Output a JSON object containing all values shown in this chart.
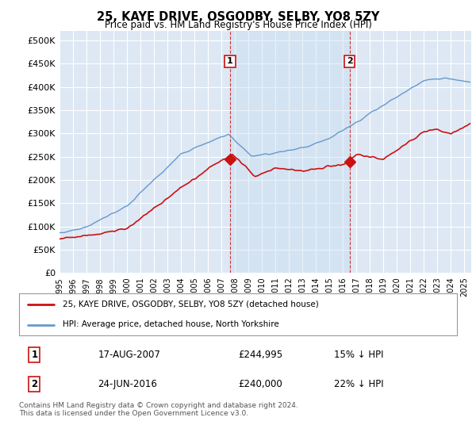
{
  "title": "25, KAYE DRIVE, OSGODBY, SELBY, YO8 5ZY",
  "subtitle": "Price paid vs. HM Land Registry's House Price Index (HPI)",
  "ylabel_ticks": [
    "£0",
    "£50K",
    "£100K",
    "£150K",
    "£200K",
    "£250K",
    "£300K",
    "£350K",
    "£400K",
    "£450K",
    "£500K"
  ],
  "ytick_values": [
    0,
    50000,
    100000,
    150000,
    200000,
    250000,
    300000,
    350000,
    400000,
    450000,
    500000
  ],
  "ylim": [
    0,
    520000
  ],
  "xlim_start": 1995.0,
  "xlim_end": 2025.5,
  "bg_color": "#dde8f4",
  "shade_color": "#c8ddf0",
  "grid_color": "#ffffff",
  "hpi_color": "#6699cc",
  "price_color": "#cc1111",
  "sale1_x": 2007.63,
  "sale1_y": 244995,
  "sale1_label": "1",
  "sale2_x": 2016.48,
  "sale2_y": 240000,
  "sale2_label": "2",
  "legend_line1": "25, KAYE DRIVE, OSGODBY, SELBY, YO8 5ZY (detached house)",
  "legend_line2": "HPI: Average price, detached house, North Yorkshire",
  "table_row1": [
    "1",
    "17-AUG-2007",
    "£244,995",
    "15% ↓ HPI"
  ],
  "table_row2": [
    "2",
    "24-JUN-2016",
    "£240,000",
    "22% ↓ HPI"
  ],
  "footer": "Contains HM Land Registry data © Crown copyright and database right 2024.\nThis data is licensed under the Open Government Licence v3.0.",
  "xtick_years": [
    1995,
    1996,
    1997,
    1998,
    1999,
    2000,
    2001,
    2002,
    2003,
    2004,
    2005,
    2006,
    2007,
    2008,
    2009,
    2010,
    2011,
    2012,
    2013,
    2014,
    2015,
    2016,
    2017,
    2018,
    2019,
    2020,
    2021,
    2022,
    2023,
    2024,
    2025
  ]
}
